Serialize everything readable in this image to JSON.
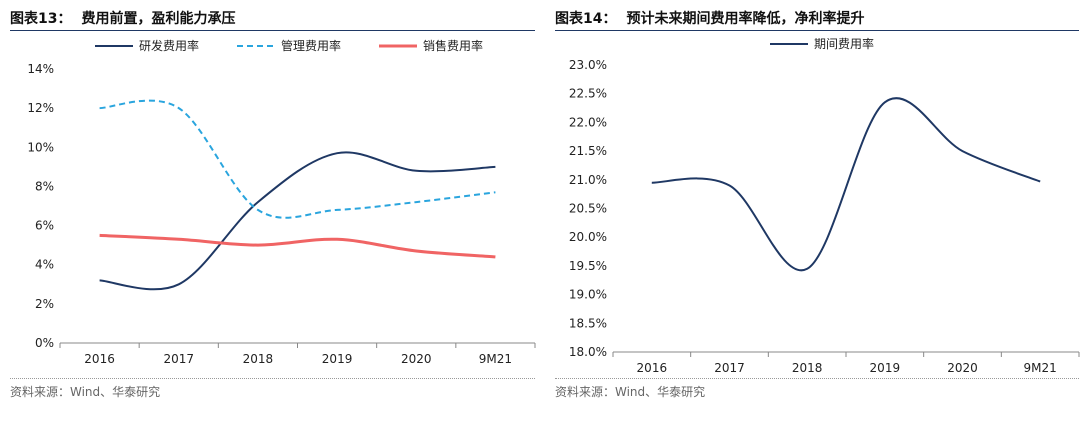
{
  "charts": [
    {
      "fig_label": "图表13：",
      "title": "费用前置，盈利能力承压",
      "source": "资料来源：Wind、华泰研究",
      "type": "line",
      "categories": [
        "2016",
        "2017",
        "2018",
        "2019",
        "2020",
        "9M21"
      ],
      "yticks": [
        "0%",
        "2%",
        "4%",
        "6%",
        "8%",
        "10%",
        "12%",
        "14%"
      ],
      "ylim": [
        0,
        14
      ],
      "legend_position": "top",
      "grid": false,
      "series": [
        {
          "name": "研发费用率",
          "values": [
            3.2,
            3.0,
            7.2,
            9.7,
            8.8,
            9.0
          ],
          "color": "#1f3864",
          "dash": "solid"
        },
        {
          "name": "管理费用率",
          "values": [
            12.0,
            12.0,
            6.8,
            6.8,
            7.2,
            7.7
          ],
          "color": "#2aa5de",
          "dash": "dashed"
        },
        {
          "name": "销售费用率",
          "values": [
            5.5,
            5.3,
            5.0,
            5.3,
            4.7,
            4.4
          ],
          "color": "#f06464",
          "dash": "solid"
        }
      ]
    },
    {
      "fig_label": "图表14：",
      "title": "预计未来期间费用率降低，净利率提升",
      "source": "资料来源：Wind、华泰研究",
      "type": "line",
      "categories": [
        "2016",
        "2017",
        "2018",
        "2019",
        "2020",
        "9M21"
      ],
      "yticks": [
        "18.0%",
        "18.5%",
        "19.0%",
        "19.5%",
        "20.0%",
        "20.5%",
        "21.0%",
        "21.5%",
        "22.0%",
        "22.5%",
        "23.0%"
      ],
      "ylim": [
        18,
        23
      ],
      "legend_position": "top",
      "grid": false,
      "series": [
        {
          "name": "期间费用率",
          "values": [
            20.95,
            20.9,
            19.45,
            22.35,
            21.5,
            20.97
          ],
          "color": "#1f3864",
          "dash": "solid"
        }
      ]
    }
  ]
}
